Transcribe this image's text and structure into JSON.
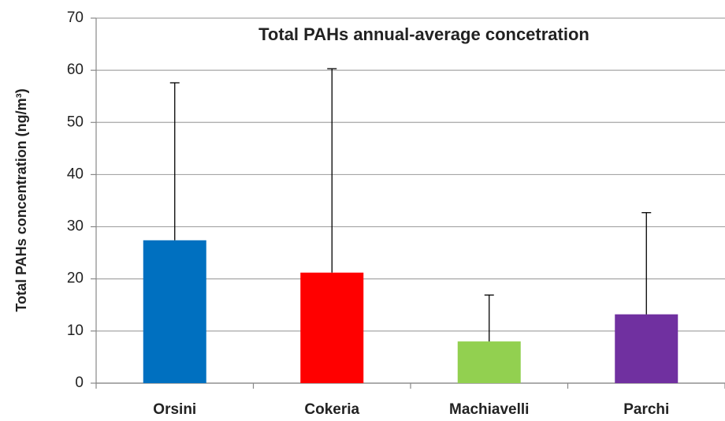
{
  "chart_data": {
    "type": "bar",
    "title": "Total PAHs annual-average concetration",
    "y_label": "Total PAHs concentration (ng/m³)",
    "categories": [
      "Orsini",
      "Cokeria",
      "Machiavelli",
      "Parchi"
    ],
    "values": [
      27.4,
      21.2,
      8.0,
      13.2
    ],
    "errors": [
      30.2,
      39.1,
      8.9,
      19.5
    ],
    "colors": [
      "#0070c0",
      "#ff0000",
      "#92d050",
      "#7030a0"
    ],
    "ylim": [
      0,
      70
    ],
    "yticks": [
      0,
      10,
      20,
      30,
      40,
      50,
      60,
      70
    ],
    "grid": true
  }
}
